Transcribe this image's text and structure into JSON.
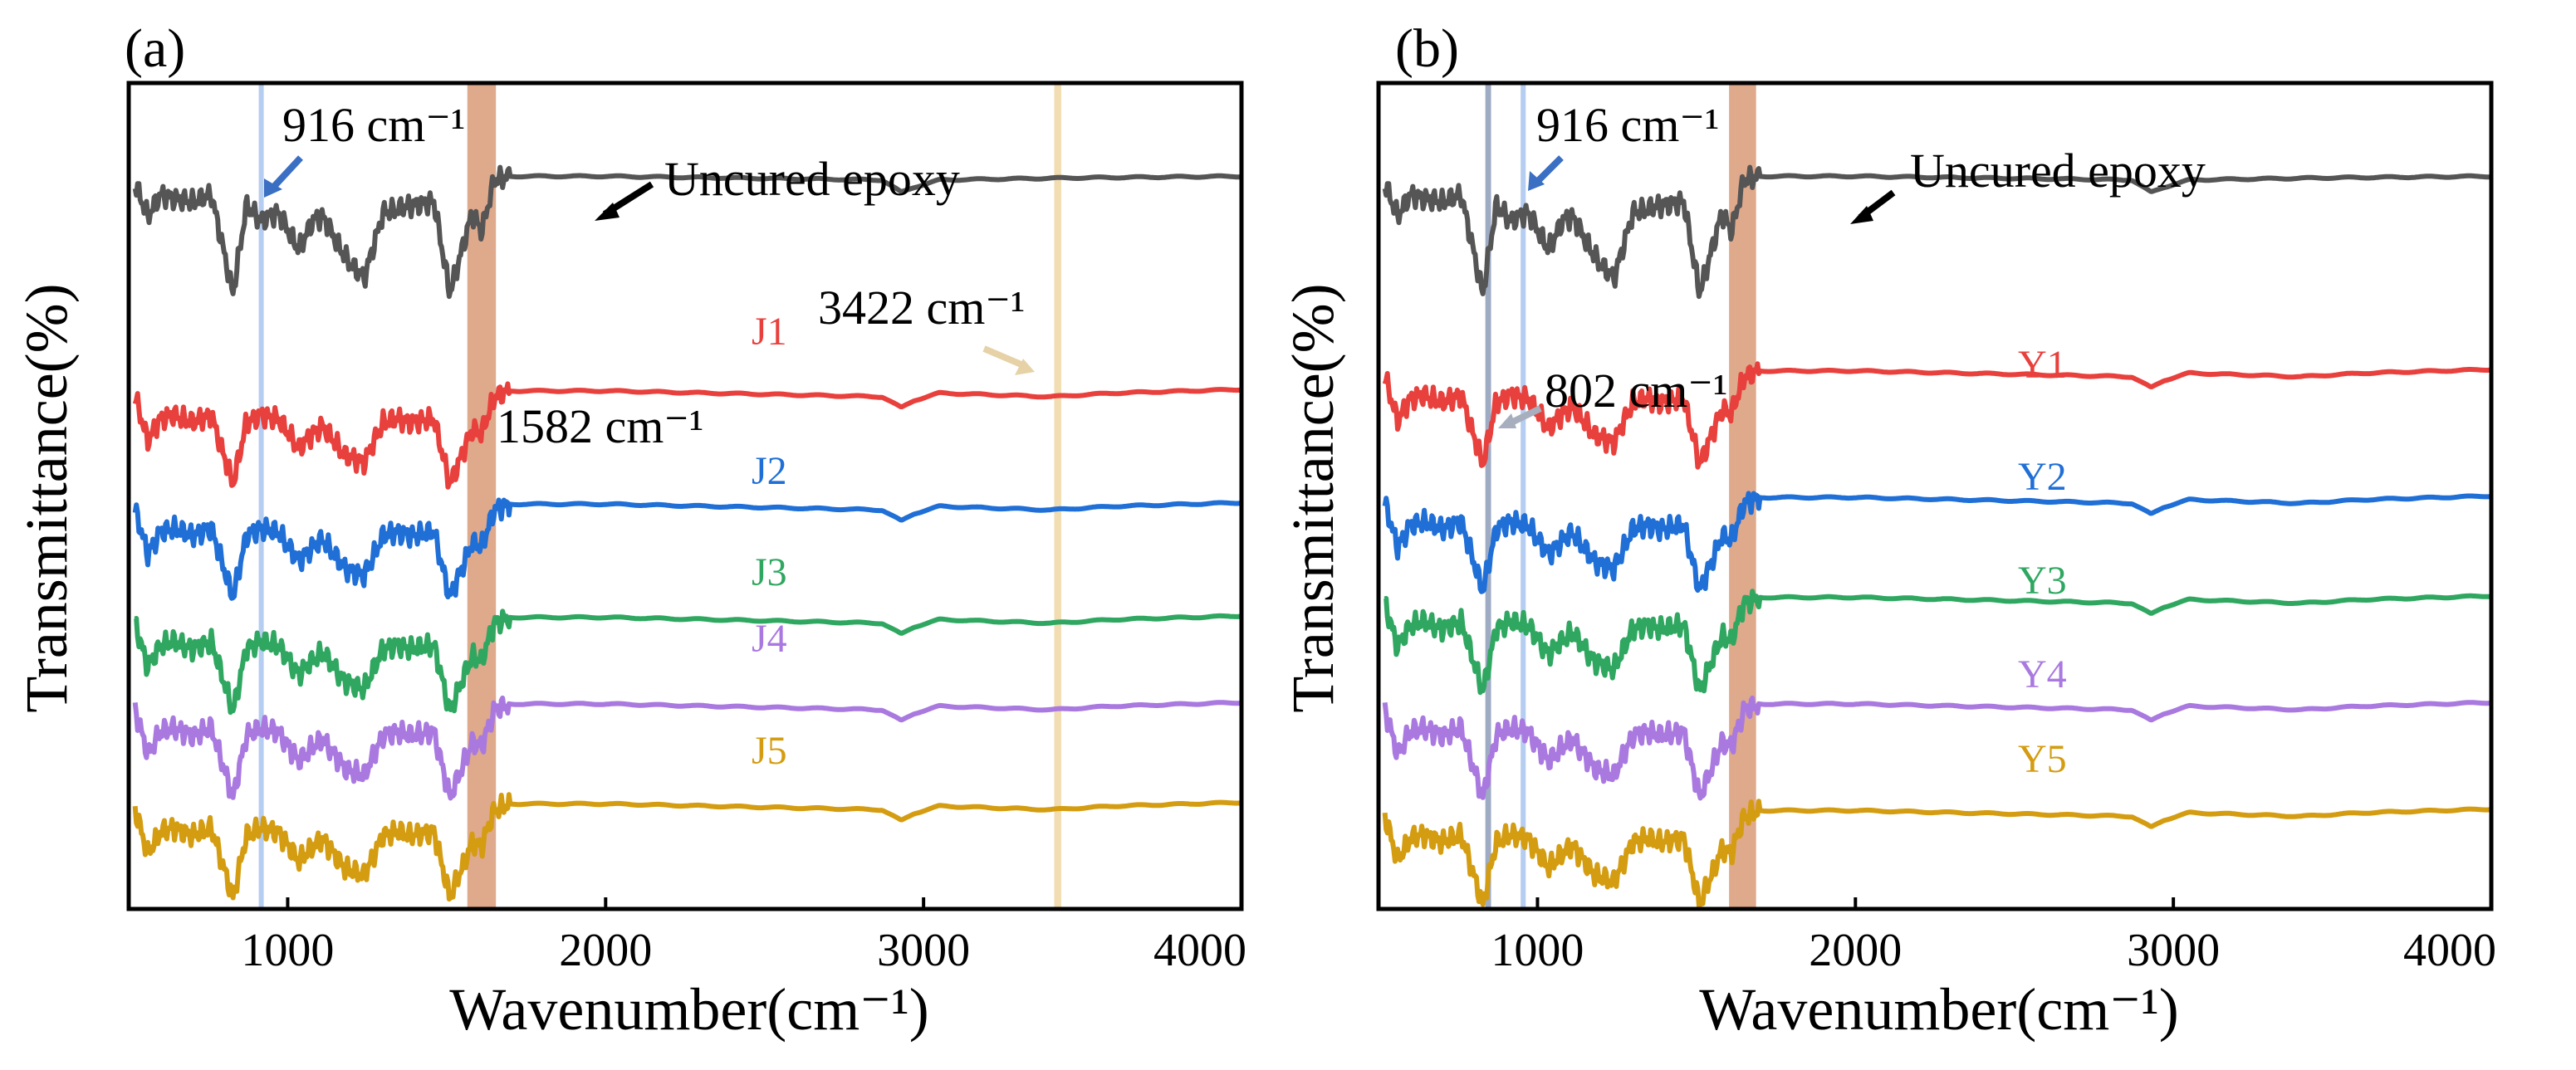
{
  "chart_data": [
    {
      "panel_label": "(a)",
      "type": "line",
      "xlabel": "Wavenumber(cm⁻¹)",
      "ylabel": "Transmittance(%)",
      "xlim": [
        500,
        4000
      ],
      "xticks": [
        "1000",
        "2000",
        "3000",
        "4000"
      ],
      "series": [
        {
          "name": "Uncured epoxy",
          "label": "",
          "color": "#555555",
          "baseline": 5.0,
          "shape": "epoxy"
        },
        {
          "name": "J1",
          "label": "J1",
          "color": "#e8403c",
          "baseline": 3.4,
          "shape": "cured"
        },
        {
          "name": "J2",
          "label": "J2",
          "color": "#1f6fd6",
          "baseline": 2.55,
          "shape": "cured"
        },
        {
          "name": "J3",
          "label": "J3",
          "color": "#2fa760",
          "baseline": 1.7,
          "shape": "cured"
        },
        {
          "name": "J4",
          "label": "J4",
          "color": "#a979e0",
          "baseline": 1.05,
          "shape": "cured"
        },
        {
          "name": "J5",
          "label": "J5",
          "color": "#d49c10",
          "baseline": 0.3,
          "shape": "cured"
        }
      ],
      "bands": [
        {
          "x": 916,
          "width": 14,
          "color": "#a8c4ef"
        },
        {
          "x": 1610,
          "width": 90,
          "color": "#d99a78"
        },
        {
          "x": 3422,
          "width": 22,
          "color": "#efd7a3"
        }
      ],
      "annotations": {
        "a916": "916 cm⁻¹",
        "a1582": "1582 cm⁻¹",
        "a3422": "3422 cm⁻¹",
        "uncured": "Uncured epoxy"
      }
    },
    {
      "panel_label": "(b)",
      "type": "line",
      "xlabel": "Wavenumber(cm⁻¹)",
      "ylabel": "Transmittance(%)",
      "xlim": [
        500,
        4000
      ],
      "xticks": [
        "1000",
        "2000",
        "3000",
        "4000"
      ],
      "series": [
        {
          "name": "Uncured epoxy",
          "label": "",
          "color": "#555555",
          "baseline": 5.0,
          "shape": "epoxy"
        },
        {
          "name": "Y1",
          "label": "Y1",
          "color": "#e8403c",
          "baseline": 3.55,
          "shape": "cured"
        },
        {
          "name": "Y2",
          "label": "Y2",
          "color": "#1f6fd6",
          "baseline": 2.6,
          "shape": "cured"
        },
        {
          "name": "Y3",
          "label": "Y3",
          "color": "#2fa760",
          "baseline": 1.85,
          "shape": "cured"
        },
        {
          "name": "Y4",
          "label": "Y4",
          "color": "#a979e0",
          "baseline": 1.05,
          "shape": "cured"
        },
        {
          "name": "Y5",
          "label": "Y5",
          "color": "#d49c10",
          "baseline": 0.25,
          "shape": "cured"
        }
      ],
      "bands": [
        {
          "x": 845,
          "width": 18,
          "color": "#8d9cb8"
        },
        {
          "x": 955,
          "width": 16,
          "color": "#a8c4ef"
        },
        {
          "x": 1645,
          "width": 85,
          "color": "#d99a78"
        }
      ],
      "annotations": {
        "a916": "916 cm⁻¹",
        "a802": "802 cm⁻¹",
        "uncured": "Uncured epoxy"
      }
    }
  ]
}
